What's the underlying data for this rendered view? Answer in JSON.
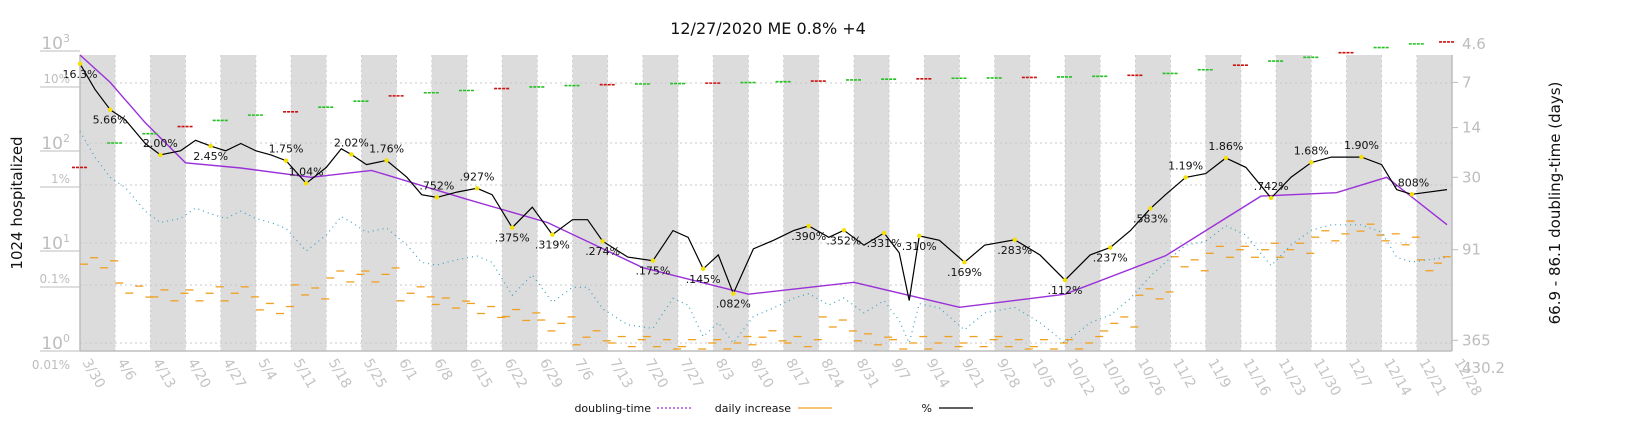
{
  "chart_data": {
    "type": "line",
    "title": "12/27/2020 ME 0.8% +4",
    "ylabel_left": "1024 hospitalized",
    "ylabel_right": "66.9 - 86.1 doubling-time (days)",
    "y_left_ticks": [
      "10^0",
      "10^1",
      "10^2",
      "10^3"
    ],
    "y_left_small_ticks": [
      "0.01%",
      "0.1%",
      "1%",
      "10%"
    ],
    "y_right_ticks": [
      "4.6",
      "7",
      "14",
      "30",
      "91",
      "365",
      "430.2"
    ],
    "x_tick_labels": [
      "3/30",
      "4/6",
      "4/13",
      "4/20",
      "4/27",
      "5/4",
      "5/11",
      "5/18",
      "5/25",
      "6/1",
      "6/8",
      "6/15",
      "6/22",
      "6/29",
      "7/6",
      "7/13",
      "7/20",
      "7/27",
      "8/3",
      "8/10",
      "8/17",
      "8/24",
      "8/31",
      "9/7",
      "9/14",
      "9/21",
      "9/28",
      "10/5",
      "10/12",
      "10/19",
      "10/26",
      "11/2",
      "11/9",
      "11/16",
      "11/23",
      "11/30",
      "12/7",
      "12/14",
      "12/21",
      "12/28"
    ],
    "legend": [
      "doubling-time",
      "daily increase",
      "%"
    ],
    "percent_labels": [
      ".808%",
      "1.90%",
      "1.68%",
      ".742%",
      "1.86%",
      "1.19%",
      ".583%",
      ".237%",
      ".112%",
      ".283%",
      ".169%",
      ".310%",
      ".331%",
      ".352%",
      ".390%",
      ".082%",
      ".145%",
      ".175%",
      ".274%",
      ".319%",
      ".375%",
      ".927%",
      ".752%",
      "1.76%",
      "2.02%",
      "1.04%",
      "1.75%",
      "2.45%",
      "2.00%",
      "5.66%",
      "16.3%"
    ],
    "percent_points": [
      {
        "date": "2020-03-30",
        "value": 16.3,
        "label": "16.3%"
      },
      {
        "date": "2020-04-05",
        "value": 5.66,
        "label": "5.66%"
      },
      {
        "date": "2020-04-15",
        "value": 2.0,
        "label": "2.00%"
      },
      {
        "date": "2020-04-25",
        "value": 2.45,
        "label": "2.45%"
      },
      {
        "date": "2020-05-10",
        "value": 1.75,
        "label": "1.75%"
      },
      {
        "date": "2020-05-14",
        "value": 1.04,
        "label": "1.04%"
      },
      {
        "date": "2020-05-23",
        "value": 2.02,
        "label": "2.02%"
      },
      {
        "date": "2020-05-30",
        "value": 1.76,
        "label": "1.76%"
      },
      {
        "date": "2020-06-09",
        "value": 0.752,
        "label": ".752%"
      },
      {
        "date": "2020-06-17",
        "value": 0.927,
        "label": ".927%"
      },
      {
        "date": "2020-06-24",
        "value": 0.375,
        "label": ".375%"
      },
      {
        "date": "2020-07-02",
        "value": 0.319,
        "label": ".319%"
      },
      {
        "date": "2020-07-12",
        "value": 0.274,
        "label": ".274%"
      },
      {
        "date": "2020-07-22",
        "value": 0.175,
        "label": ".175%"
      },
      {
        "date": "2020-08-01",
        "value": 0.145,
        "label": ".145%"
      },
      {
        "date": "2020-08-07",
        "value": 0.082,
        "label": ".082%"
      },
      {
        "date": "2020-08-22",
        "value": 0.39,
        "label": ".390%"
      },
      {
        "date": "2020-08-29",
        "value": 0.352,
        "label": ".352%"
      },
      {
        "date": "2020-09-06",
        "value": 0.331,
        "label": ".331%"
      },
      {
        "date": "2020-09-13",
        "value": 0.31,
        "label": ".310%"
      },
      {
        "date": "2020-09-22",
        "value": 0.169,
        "label": ".169%"
      },
      {
        "date": "2020-10-02",
        "value": 0.283,
        "label": ".283%"
      },
      {
        "date": "2020-10-12",
        "value": 0.112,
        "label": ".112%"
      },
      {
        "date": "2020-10-21",
        "value": 0.237,
        "label": ".237%"
      },
      {
        "date": "2020-10-29",
        "value": 0.583,
        "label": ".583%"
      },
      {
        "date": "2020-11-05",
        "value": 1.19,
        "label": "1.19%"
      },
      {
        "date": "2020-11-13",
        "value": 1.86,
        "label": "1.86%"
      },
      {
        "date": "2020-11-22",
        "value": 0.742,
        "label": ".742%"
      },
      {
        "date": "2020-11-30",
        "value": 1.68,
        "label": "1.68%"
      },
      {
        "date": "2020-12-10",
        "value": 1.9,
        "label": "1.90%"
      },
      {
        "date": "2020-12-20",
        "value": 0.808,
        "label": ".808%"
      }
    ],
    "percent_curve": [
      [
        "2020-03-30",
        16.3
      ],
      [
        "2020-04-02",
        9.0
      ],
      [
        "2020-04-05",
        5.66
      ],
      [
        "2020-04-08",
        4.5
      ],
      [
        "2020-04-12",
        2.6
      ],
      [
        "2020-04-15",
        2.0
      ],
      [
        "2020-04-19",
        2.2
      ],
      [
        "2020-04-22",
        2.8
      ],
      [
        "2020-04-25",
        2.45
      ],
      [
        "2020-04-28",
        2.2
      ],
      [
        "2020-05-01",
        2.6
      ],
      [
        "2020-05-04",
        2.2
      ],
      [
        "2020-05-07",
        2.0
      ],
      [
        "2020-05-10",
        1.75
      ],
      [
        "2020-05-14",
        1.04
      ],
      [
        "2020-05-18",
        1.5
      ],
      [
        "2020-05-21",
        2.3
      ],
      [
        "2020-05-23",
        2.02
      ],
      [
        "2020-05-26",
        1.6
      ],
      [
        "2020-05-30",
        1.76
      ],
      [
        "2020-06-03",
        1.2
      ],
      [
        "2020-06-06",
        0.8
      ],
      [
        "2020-06-09",
        0.752
      ],
      [
        "2020-06-13",
        0.85
      ],
      [
        "2020-06-17",
        0.927
      ],
      [
        "2020-06-20",
        0.8
      ],
      [
        "2020-06-24",
        0.375
      ],
      [
        "2020-06-28",
        0.6
      ],
      [
        "2020-07-02",
        0.319
      ],
      [
        "2020-07-06",
        0.45
      ],
      [
        "2020-07-09",
        0.45
      ],
      [
        "2020-07-12",
        0.274
      ],
      [
        "2020-07-17",
        0.19
      ],
      [
        "2020-07-22",
        0.175
      ],
      [
        "2020-07-26",
        0.35
      ],
      [
        "2020-07-29",
        0.3
      ],
      [
        "2020-08-01",
        0.145
      ],
      [
        "2020-08-04",
        0.2
      ],
      [
        "2020-08-07",
        0.082
      ],
      [
        "2020-08-11",
        0.23
      ],
      [
        "2020-08-15",
        0.28
      ],
      [
        "2020-08-19",
        0.35
      ],
      [
        "2020-08-22",
        0.39
      ],
      [
        "2020-08-26",
        0.3
      ],
      [
        "2020-08-29",
        0.352
      ],
      [
        "2020-09-02",
        0.25
      ],
      [
        "2020-09-06",
        0.331
      ],
      [
        "2020-09-09",
        0.21
      ],
      [
        "2020-09-11",
        0.07
      ],
      [
        "2020-09-13",
        0.31
      ],
      [
        "2020-09-17",
        0.28
      ],
      [
        "2020-09-22",
        0.169
      ],
      [
        "2020-09-26",
        0.25
      ],
      [
        "2020-10-02",
        0.283
      ],
      [
        "2020-10-07",
        0.2
      ],
      [
        "2020-10-12",
        0.112
      ],
      [
        "2020-10-17",
        0.2
      ],
      [
        "2020-10-21",
        0.237
      ],
      [
        "2020-10-25",
        0.35
      ],
      [
        "2020-10-29",
        0.583
      ],
      [
        "2020-11-01",
        0.8
      ],
      [
        "2020-11-05",
        1.19
      ],
      [
        "2020-11-09",
        1.3
      ],
      [
        "2020-11-13",
        1.86
      ],
      [
        "2020-11-17",
        1.5
      ],
      [
        "2020-11-22",
        0.742
      ],
      [
        "2020-11-26",
        1.2
      ],
      [
        "2020-11-30",
        1.68
      ],
      [
        "2020-12-04",
        1.9
      ],
      [
        "2020-12-10",
        1.9
      ],
      [
        "2020-12-14",
        1.6
      ],
      [
        "2020-12-17",
        0.9
      ],
      [
        "2020-12-20",
        0.808
      ],
      [
        "2020-12-27",
        0.9
      ]
    ],
    "hospitalized_cumulative": [
      [
        "2020-03-30",
        57
      ],
      [
        "2020-04-06",
        100
      ],
      [
        "2020-04-13",
        124
      ],
      [
        "2020-04-20",
        146
      ],
      [
        "2020-04-27",
        168
      ],
      [
        "2020-05-04",
        190
      ],
      [
        "2020-05-11",
        205
      ],
      [
        "2020-05-18",
        228
      ],
      [
        "2020-05-25",
        262
      ],
      [
        "2020-06-01",
        296
      ],
      [
        "2020-06-08",
        318
      ],
      [
        "2020-06-15",
        335
      ],
      [
        "2020-06-22",
        350
      ],
      [
        "2020-06-29",
        364
      ],
      [
        "2020-07-06",
        375
      ],
      [
        "2020-07-13",
        383
      ],
      [
        "2020-07-20",
        389
      ],
      [
        "2020-07-27",
        393
      ],
      [
        "2020-08-03",
        397
      ],
      [
        "2020-08-10",
        402
      ],
      [
        "2020-08-17",
        410
      ],
      [
        "2020-08-24",
        416
      ],
      [
        "2020-08-31",
        427
      ],
      [
        "2020-09-07",
        435
      ],
      [
        "2020-09-14",
        438
      ],
      [
        "2020-09-21",
        444
      ],
      [
        "2020-09-28",
        447
      ],
      [
        "2020-10-05",
        452
      ],
      [
        "2020-10-12",
        458
      ],
      [
        "2020-10-19",
        464
      ],
      [
        "2020-10-26",
        475
      ],
      [
        "2020-11-02",
        496
      ],
      [
        "2020-11-09",
        540
      ],
      [
        "2020-11-16",
        600
      ],
      [
        "2020-11-23",
        660
      ],
      [
        "2020-11-30",
        720
      ],
      [
        "2020-12-07",
        800
      ],
      [
        "2020-12-14",
        900
      ],
      [
        "2020-12-21",
        980
      ],
      [
        "2020-12-27",
        1024
      ]
    ],
    "doubling_time_days": [
      [
        "2020-03-30",
        4.6
      ],
      [
        "2020-04-05",
        7.0
      ],
      [
        "2020-04-12",
        13
      ],
      [
        "2020-04-20",
        24
      ],
      [
        "2020-05-01",
        26
      ],
      [
        "2020-05-15",
        30
      ],
      [
        "2020-05-27",
        27
      ],
      [
        "2020-06-15",
        42
      ],
      [
        "2020-07-01",
        60
      ],
      [
        "2020-07-20",
        120
      ],
      [
        "2020-08-10",
        180
      ],
      [
        "2020-08-31",
        150
      ],
      [
        "2020-09-21",
        220
      ],
      [
        "2020-10-12",
        180
      ],
      [
        "2020-11-01",
        100
      ],
      [
        "2020-11-20",
        40
      ],
      [
        "2020-12-05",
        38
      ],
      [
        "2020-12-15",
        30
      ],
      [
        "2020-12-27",
        62
      ]
    ],
    "colors": {
      "percent": "#000000",
      "doubling": "#9b30d9",
      "daily": "#f0a020",
      "cum_green": "#22c022",
      "cum_red": "#cc1111",
      "label_dot": "#f5e000",
      "band": "#dcdcdc"
    }
  }
}
